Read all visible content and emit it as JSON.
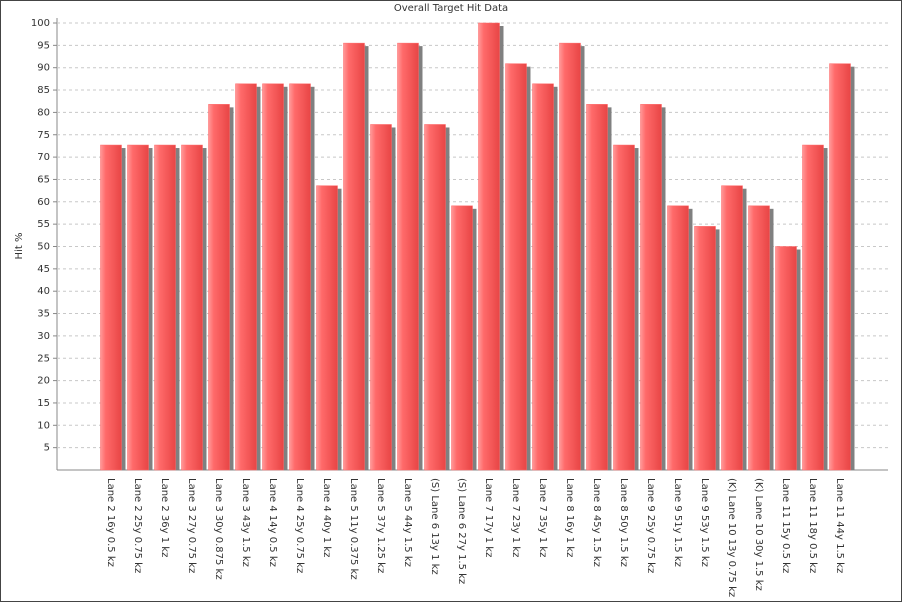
{
  "chart_data": {
    "type": "bar",
    "title": "Overall Target Hit Data",
    "y_label": "Hit %",
    "categories": [
      "Lane 2 16y 0.5 kz",
      "Lane 2 25y 0.75 kz",
      "Lane 2 36y 1 kz",
      "Lane 3 27y 0.75 kz",
      "Lane 3 30y 0.875 kz",
      "Lane 3 43y 1.5 kz",
      "Lane 4 14y 0.5 kz",
      "Lane 4 25y 0.75 kz",
      "Lane 4 40y 1 kz",
      "Lane 5 11y 0.375 kz",
      "Lane 5 37y 1.25 kz",
      "Lane 5 44y 1.5 kz",
      "(S) Lane 6 13y 1 kz",
      "(S) Lane 6 27y 1.5 kz",
      "Lane 7 17y 1 kz",
      "Lane 7 23y 1 kz",
      "Lane 7 35y 1 kz",
      "Lane 8 16y 1 kz",
      "Lane 8 45y 1.5 kz",
      "Lane 8 50y 1.5 kz",
      "Lane 9 25y 0.75 kz",
      "Lane 9 51y 1.5 kz",
      "Lane 9 53y 1.5 kz",
      "(K) Lane 10 13y 0.75 kz",
      "(K) Lane 10 30y 1.5 kz",
      "Lane 11 15y 0.5 kz",
      "Lane 11 18y 0.5 kz",
      "Lane 11 44y 1.5 kz"
    ],
    "values": [
      72.7,
      72.7,
      72.7,
      72.7,
      81.8,
      86.4,
      86.4,
      86.4,
      63.6,
      95.5,
      77.3,
      95.5,
      77.3,
      59.1,
      100,
      90.9,
      86.4,
      95.5,
      81.8,
      72.7,
      81.8,
      59.1,
      54.5,
      63.6,
      59.1,
      50,
      72.7,
      90.9
    ],
    "color": "#ff6666",
    "ylim": [
      0,
      100
    ],
    "yticks": [
      5,
      10,
      15,
      20,
      25,
      30,
      35,
      40,
      45,
      50,
      55,
      60,
      65,
      70,
      75,
      80,
      85,
      90,
      95,
      100
    ],
    "grid": true
  }
}
